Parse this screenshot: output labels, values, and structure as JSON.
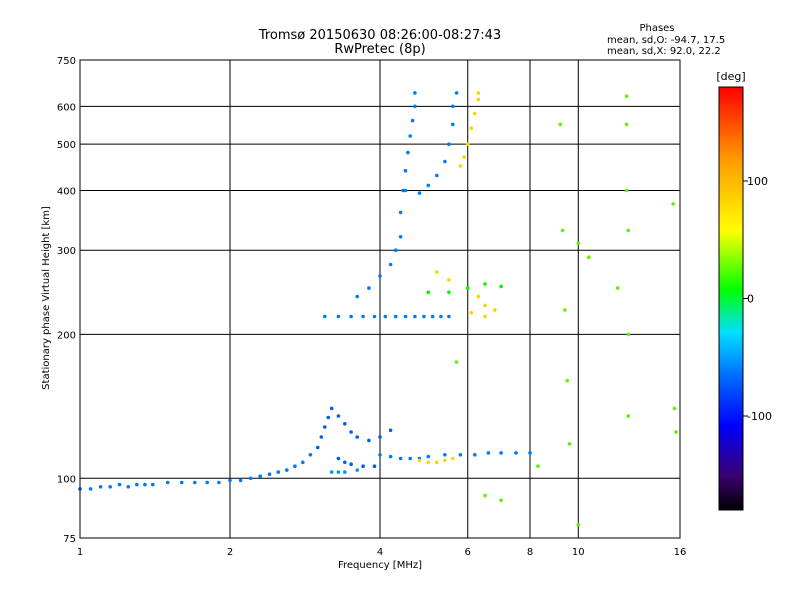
{
  "chart_data": {
    "type": "scatter",
    "title": "Tromsø 20150630 08:26:00-08:27:43",
    "subtitle": "RwPretec (8p)",
    "xlabel": "Frequency [MHz]",
    "ylabel": "Stationary phase Virtual Height [km]",
    "x_scale": "log",
    "y_scale": "log",
    "xlim": [
      1,
      16
    ],
    "ylim": [
      75,
      750
    ],
    "x_ticks": [
      1,
      2,
      4,
      6,
      8,
      10,
      16
    ],
    "x_tick_labels": [
      "1",
      "2",
      "4",
      "6",
      "8",
      "10",
      "16"
    ],
    "y_ticks": [
      75,
      100,
      200,
      300,
      400,
      500,
      600,
      750
    ],
    "y_tick_labels": [
      "75",
      "100",
      "200",
      "300",
      "400",
      "500",
      "600",
      "750"
    ],
    "grid": true,
    "stats": {
      "heading": "Phases",
      "line_o": "mean, sd,O: -94.7, 17.5",
      "line_x": "mean, sd,X:  92.0, 22.2"
    },
    "colorbar": {
      "label": "[deg]",
      "range": [
        -180,
        180
      ],
      "ticks": [
        -100,
        0,
        100
      ],
      "tick_labels": [
        "-100",
        "0",
        "100"
      ]
    },
    "series": [
      {
        "trace": "low-E",
        "phase_deg": -100,
        "points": [
          [
            1.0,
            95
          ],
          [
            1.05,
            95
          ],
          [
            1.1,
            96
          ],
          [
            1.15,
            96
          ],
          [
            1.2,
            97
          ],
          [
            1.25,
            96
          ],
          [
            1.3,
            97
          ],
          [
            1.35,
            97
          ],
          [
            1.4,
            97
          ],
          [
            1.5,
            98
          ],
          [
            1.6,
            98
          ],
          [
            1.7,
            98
          ],
          [
            1.8,
            98
          ],
          [
            1.9,
            98
          ],
          [
            2.0,
            99
          ],
          [
            2.1,
            99
          ],
          [
            2.2,
            100
          ],
          [
            2.3,
            101
          ],
          [
            2.4,
            102
          ],
          [
            2.5,
            103
          ],
          [
            2.6,
            104
          ],
          [
            2.7,
            106
          ],
          [
            2.8,
            108
          ],
          [
            2.9,
            112
          ]
        ]
      },
      {
        "trace": "E-cusp",
        "phase_deg": -110,
        "points": [
          [
            3.0,
            116
          ],
          [
            3.05,
            122
          ],
          [
            3.1,
            128
          ],
          [
            3.15,
            134
          ],
          [
            3.2,
            140
          ],
          [
            3.3,
            135
          ],
          [
            3.4,
            130
          ],
          [
            3.5,
            125
          ],
          [
            3.6,
            122
          ],
          [
            3.8,
            120
          ],
          [
            4.0,
            122
          ],
          [
            4.2,
            126
          ],
          [
            3.3,
            110
          ],
          [
            3.4,
            108
          ],
          [
            3.5,
            107
          ],
          [
            3.7,
            106
          ],
          [
            3.9,
            106
          ]
        ]
      },
      {
        "trace": "E-layer",
        "phase_deg": -100,
        "points": [
          [
            4.0,
            112
          ],
          [
            4.2,
            111
          ],
          [
            4.4,
            110
          ],
          [
            4.6,
            110
          ],
          [
            4.8,
            110
          ],
          [
            5.0,
            111
          ],
          [
            5.4,
            112
          ],
          [
            5.8,
            112
          ],
          [
            6.2,
            112
          ],
          [
            6.6,
            113
          ],
          [
            7.0,
            113
          ],
          [
            7.5,
            113
          ],
          [
            8.0,
            113
          ]
        ]
      },
      {
        "trace": "E-layer-x",
        "phase_deg": 110,
        "points": [
          [
            4.8,
            109
          ],
          [
            5.0,
            108
          ],
          [
            5.2,
            108
          ],
          [
            5.4,
            109
          ],
          [
            5.6,
            110
          ]
        ]
      },
      {
        "trace": "E-faint",
        "phase_deg": -90,
        "points": [
          [
            3.2,
            103
          ],
          [
            3.3,
            103
          ],
          [
            3.4,
            103
          ],
          [
            3.6,
            104
          ]
        ]
      },
      {
        "trace": "F1-base",
        "phase_deg": -100,
        "points": [
          [
            3.1,
            218
          ],
          [
            3.3,
            218
          ],
          [
            3.5,
            218
          ],
          [
            3.7,
            218
          ],
          [
            3.9,
            218
          ],
          [
            4.1,
            218
          ],
          [
            4.3,
            218
          ],
          [
            4.5,
            218
          ],
          [
            4.7,
            218
          ],
          [
            4.9,
            218
          ],
          [
            5.1,
            218
          ],
          [
            5.3,
            218
          ],
          [
            5.5,
            218
          ]
        ]
      },
      {
        "trace": "F1-o",
        "phase_deg": -100,
        "points": [
          [
            3.6,
            240
          ],
          [
            3.8,
            250
          ],
          [
            4.0,
            265
          ],
          [
            4.2,
            280
          ],
          [
            4.3,
            300
          ],
          [
            4.4,
            320
          ],
          [
            4.4,
            360
          ],
          [
            4.45,
            400
          ],
          [
            4.5,
            440
          ],
          [
            4.55,
            480
          ],
          [
            4.6,
            520
          ],
          [
            4.65,
            560
          ],
          [
            4.7,
            600
          ],
          [
            4.7,
            640
          ]
        ]
      },
      {
        "trace": "F2-o",
        "phase_deg": -100,
        "points": [
          [
            4.5,
            400
          ],
          [
            4.8,
            395
          ],
          [
            5.0,
            410
          ],
          [
            5.2,
            430
          ],
          [
            5.4,
            460
          ],
          [
            5.5,
            500
          ],
          [
            5.6,
            550
          ],
          [
            5.6,
            600
          ],
          [
            5.7,
            640
          ]
        ]
      },
      {
        "trace": "F-x",
        "phase_deg": 110,
        "points": [
          [
            5.8,
            450
          ],
          [
            5.9,
            470
          ],
          [
            6.0,
            500
          ],
          [
            6.1,
            540
          ],
          [
            6.2,
            580
          ],
          [
            6.3,
            620
          ],
          [
            6.3,
            640
          ],
          [
            5.2,
            270
          ],
          [
            5.5,
            260
          ],
          [
            6.0,
            250
          ],
          [
            6.3,
            240
          ],
          [
            6.5,
            230
          ],
          [
            6.8,
            225
          ],
          [
            6.1,
            222
          ],
          [
            6.5,
            218
          ]
        ]
      },
      {
        "trace": "F-mixed",
        "phase_deg": 20,
        "points": [
          [
            5.0,
            245
          ],
          [
            5.5,
            245
          ],
          [
            6.0,
            250
          ],
          [
            6.5,
            255
          ],
          [
            7.0,
            252
          ]
        ]
      },
      {
        "trace": "scattered",
        "phase_deg": 50,
        "points": [
          [
            9.2,
            550
          ],
          [
            9.3,
            330
          ],
          [
            9.4,
            225
          ],
          [
            9.5,
            160
          ],
          [
            9.6,
            118
          ],
          [
            10.0,
            310
          ],
          [
            10.5,
            290
          ],
          [
            12.0,
            250
          ],
          [
            12.5,
            630
          ],
          [
            12.5,
            550
          ],
          [
            12.5,
            400
          ],
          [
            12.6,
            330
          ],
          [
            12.6,
            200
          ],
          [
            12.6,
            135
          ],
          [
            15.5,
            375
          ],
          [
            15.6,
            140
          ],
          [
            15.7,
            125
          ],
          [
            10.0,
            80
          ],
          [
            6.5,
            92
          ],
          [
            7.0,
            90
          ],
          [
            8.3,
            106
          ],
          [
            5.7,
            175
          ]
        ]
      }
    ]
  }
}
